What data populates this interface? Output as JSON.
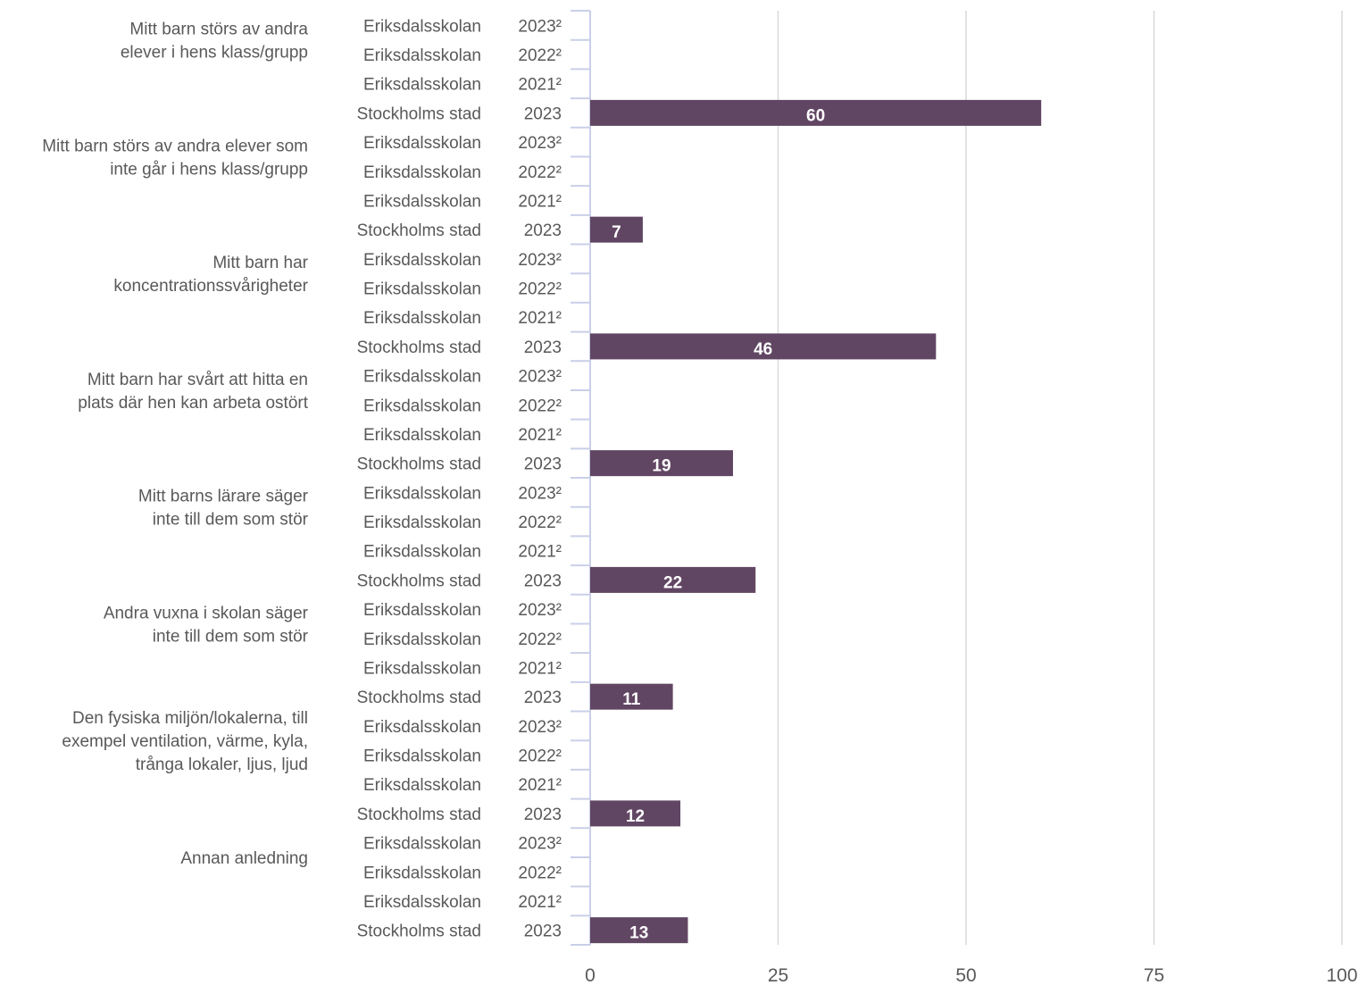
{
  "chart_data": {
    "type": "bar",
    "orientation": "horizontal",
    "xlim": [
      0,
      100
    ],
    "x_ticks": [
      0,
      25,
      50,
      75,
      100
    ],
    "grid": true,
    "bar_color": "#614663",
    "groups": [
      {
        "label_lines": [
          "Mitt barn störs av andra",
          "elever i hens klass/grupp"
        ],
        "rows": [
          {
            "name": "Eriksdalsskolan",
            "year": "2023²",
            "value": null
          },
          {
            "name": "Eriksdalsskolan",
            "year": "2022²",
            "value": null
          },
          {
            "name": "Eriksdalsskolan",
            "year": "2021²",
            "value": null
          },
          {
            "name": "Stockholms stad",
            "year": "2023",
            "value": 60
          }
        ]
      },
      {
        "label_lines": [
          "Mitt barn störs av andra elever som",
          "inte går i hens klass/grupp"
        ],
        "rows": [
          {
            "name": "Eriksdalsskolan",
            "year": "2023²",
            "value": null
          },
          {
            "name": "Eriksdalsskolan",
            "year": "2022²",
            "value": null
          },
          {
            "name": "Eriksdalsskolan",
            "year": "2021²",
            "value": null
          },
          {
            "name": "Stockholms stad",
            "year": "2023",
            "value": 7
          }
        ]
      },
      {
        "label_lines": [
          "Mitt barn har",
          "koncentrationssvårigheter"
        ],
        "rows": [
          {
            "name": "Eriksdalsskolan",
            "year": "2023²",
            "value": null
          },
          {
            "name": "Eriksdalsskolan",
            "year": "2022²",
            "value": null
          },
          {
            "name": "Eriksdalsskolan",
            "year": "2021²",
            "value": null
          },
          {
            "name": "Stockholms stad",
            "year": "2023",
            "value": 46
          }
        ]
      },
      {
        "label_lines": [
          "Mitt barn har svårt att hitta en",
          "plats där hen kan arbeta ostört"
        ],
        "rows": [
          {
            "name": "Eriksdalsskolan",
            "year": "2023²",
            "value": null
          },
          {
            "name": "Eriksdalsskolan",
            "year": "2022²",
            "value": null
          },
          {
            "name": "Eriksdalsskolan",
            "year": "2021²",
            "value": null
          },
          {
            "name": "Stockholms stad",
            "year": "2023",
            "value": 19
          }
        ]
      },
      {
        "label_lines": [
          "Mitt barns lärare säger",
          "inte till dem som stör"
        ],
        "rows": [
          {
            "name": "Eriksdalsskolan",
            "year": "2023²",
            "value": null
          },
          {
            "name": "Eriksdalsskolan",
            "year": "2022²",
            "value": null
          },
          {
            "name": "Eriksdalsskolan",
            "year": "2021²",
            "value": null
          },
          {
            "name": "Stockholms stad",
            "year": "2023",
            "value": 22
          }
        ]
      },
      {
        "label_lines": [
          "Andra vuxna i skolan säger",
          "inte till dem som stör"
        ],
        "rows": [
          {
            "name": "Eriksdalsskolan",
            "year": "2023²",
            "value": null
          },
          {
            "name": "Eriksdalsskolan",
            "year": "2022²",
            "value": null
          },
          {
            "name": "Eriksdalsskolan",
            "year": "2021²",
            "value": null
          },
          {
            "name": "Stockholms stad",
            "year": "2023",
            "value": 11
          }
        ]
      },
      {
        "label_lines": [
          "Den fysiska miljön/lokalerna, till",
          "exempel ventilation, värme, kyla,",
          "trånga lokaler, ljus, ljud"
        ],
        "rows": [
          {
            "name": "Eriksdalsskolan",
            "year": "2023²",
            "value": null
          },
          {
            "name": "Eriksdalsskolan",
            "year": "2022²",
            "value": null
          },
          {
            "name": "Eriksdalsskolan",
            "year": "2021²",
            "value": null
          },
          {
            "name": "Stockholms stad",
            "year": "2023",
            "value": 12
          }
        ]
      },
      {
        "label_lines": [
          "Annan anledning"
        ],
        "rows": [
          {
            "name": "Eriksdalsskolan",
            "year": "2023²",
            "value": null
          },
          {
            "name": "Eriksdalsskolan",
            "year": "2022²",
            "value": null
          },
          {
            "name": "Eriksdalsskolan",
            "year": "2021²",
            "value": null
          },
          {
            "name": "Stockholms stad",
            "year": "2023",
            "value": 13
          }
        ]
      }
    ]
  }
}
